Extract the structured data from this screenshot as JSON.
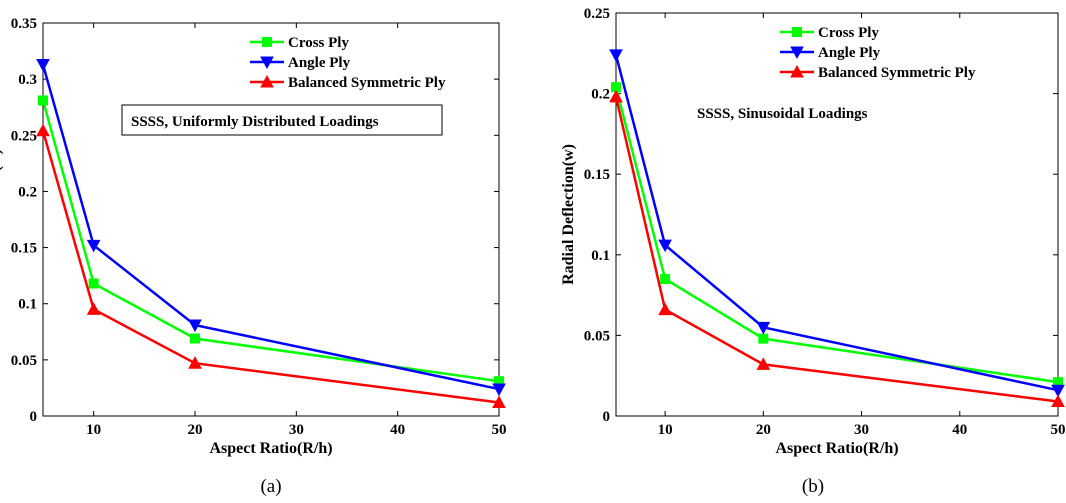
{
  "chart_data": [
    {
      "type": "line",
      "caption": "(a)",
      "xlabel": "Aspect Ratio(R/h)",
      "ylabel": "Radial Deflection(w)",
      "xlim": [
        5,
        50
      ],
      "ylim": [
        0,
        0.35
      ],
      "xticks": [
        10,
        20,
        30,
        40,
        50
      ],
      "xtick_labels": [
        "10",
        "20",
        "30",
        "40",
        "50"
      ],
      "yticks": [
        0,
        0.05,
        0.1,
        0.15,
        0.2,
        0.25,
        0.3,
        0.35
      ],
      "ytick_labels": [
        "0",
        "0.05",
        "0.1",
        "0.15",
        "0.2",
        "0.25",
        "0.3",
        "0.35"
      ],
      "annotation": "SSSS, Uniformly Distributed Loadings",
      "annotation_boxed": true,
      "legend_position": "top-right",
      "x": [
        5,
        10,
        20,
        50
      ],
      "series": [
        {
          "name": "Cross Ply",
          "color": "#00ff00",
          "marker": "square",
          "values": [
            0.281,
            0.118,
            0.069,
            0.031
          ]
        },
        {
          "name": "Angle Ply",
          "color": "#0000ff",
          "marker": "triangle-down",
          "values": [
            0.313,
            0.152,
            0.081,
            0.024
          ]
        },
        {
          "name": "Balanced Symmetric Ply",
          "color": "#ff0000",
          "marker": "triangle-up",
          "values": [
            0.254,
            0.095,
            0.047,
            0.012
          ]
        }
      ]
    },
    {
      "type": "line",
      "caption": "(b)",
      "xlabel": "Aspect Ratio(R/h)",
      "ylabel": "Radial Deflection(w)",
      "xlim": [
        5,
        50
      ],
      "ylim": [
        0,
        0.25
      ],
      "xticks": [
        10,
        20,
        30,
        40,
        50
      ],
      "xtick_labels": [
        "10",
        "20",
        "30",
        "40",
        "50"
      ],
      "yticks": [
        0,
        0.05,
        0.1,
        0.15,
        0.2,
        0.25
      ],
      "ytick_labels": [
        "0",
        "0.05",
        "0.1",
        "0.15",
        "0.2",
        "0.25"
      ],
      "annotation": "SSSS, Sinusoidal Loadings",
      "annotation_boxed": false,
      "legend_position": "top-right",
      "x": [
        5,
        10,
        20,
        50
      ],
      "series": [
        {
          "name": "Cross Ply",
          "color": "#00ff00",
          "marker": "square",
          "values": [
            0.204,
            0.085,
            0.048,
            0.021
          ]
        },
        {
          "name": "Angle Ply",
          "color": "#0000ff",
          "marker": "triangle-down",
          "values": [
            0.224,
            0.106,
            0.055,
            0.016
          ]
        },
        {
          "name": "Balanced Symmetric Ply",
          "color": "#ff0000",
          "marker": "triangle-up",
          "values": [
            0.198,
            0.066,
            0.032,
            0.009
          ]
        }
      ]
    }
  ]
}
